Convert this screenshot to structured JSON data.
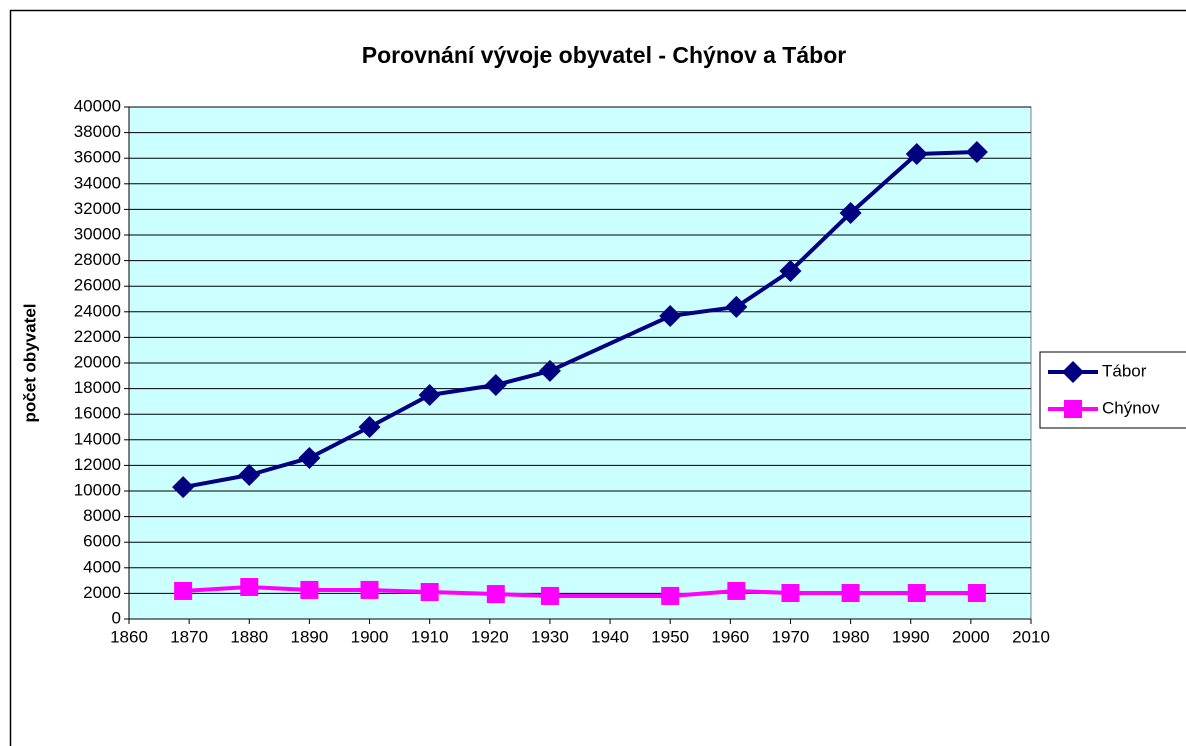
{
  "chart_data": {
    "type": "line",
    "title": "Porovnání vývoje obyvatel - Chýnov a Tábor",
    "y_label": "počet obyvatel",
    "x": [
      1869,
      1880,
      1890,
      1900,
      1910,
      1921,
      1930,
      1950,
      1961,
      1970,
      1980,
      1991,
      2001
    ],
    "series": [
      {
        "name": "Tábor",
        "color": "#000080",
        "marker": "diamond",
        "values": [
          10300,
          11250,
          12580,
          15000,
          17500,
          18280,
          19380,
          23670,
          24380,
          27190,
          31720,
          36330,
          36480
        ]
      },
      {
        "name": "Chýnov",
        "color": "#ff00ff",
        "marker": "square",
        "values": [
          2190,
          2500,
          2270,
          2270,
          2110,
          1950,
          1800,
          1800,
          2190,
          2030,
          2030,
          2030,
          2030
        ]
      }
    ],
    "xlim": [
      1860,
      2010
    ],
    "xticks": [
      1860,
      1870,
      1880,
      1890,
      1900,
      1910,
      1920,
      1930,
      1940,
      1950,
      1960,
      1970,
      1980,
      1990,
      2000,
      2010
    ],
    "ylim": [
      0,
      40000
    ],
    "yticks": [
      0,
      2000,
      4000,
      6000,
      8000,
      10000,
      12000,
      14000,
      16000,
      18000,
      20000,
      22000,
      24000,
      26000,
      28000,
      30000,
      32000,
      34000,
      36000,
      38000,
      40000
    ],
    "grid": true,
    "plot_background": "#ccffff",
    "legend": "right"
  }
}
